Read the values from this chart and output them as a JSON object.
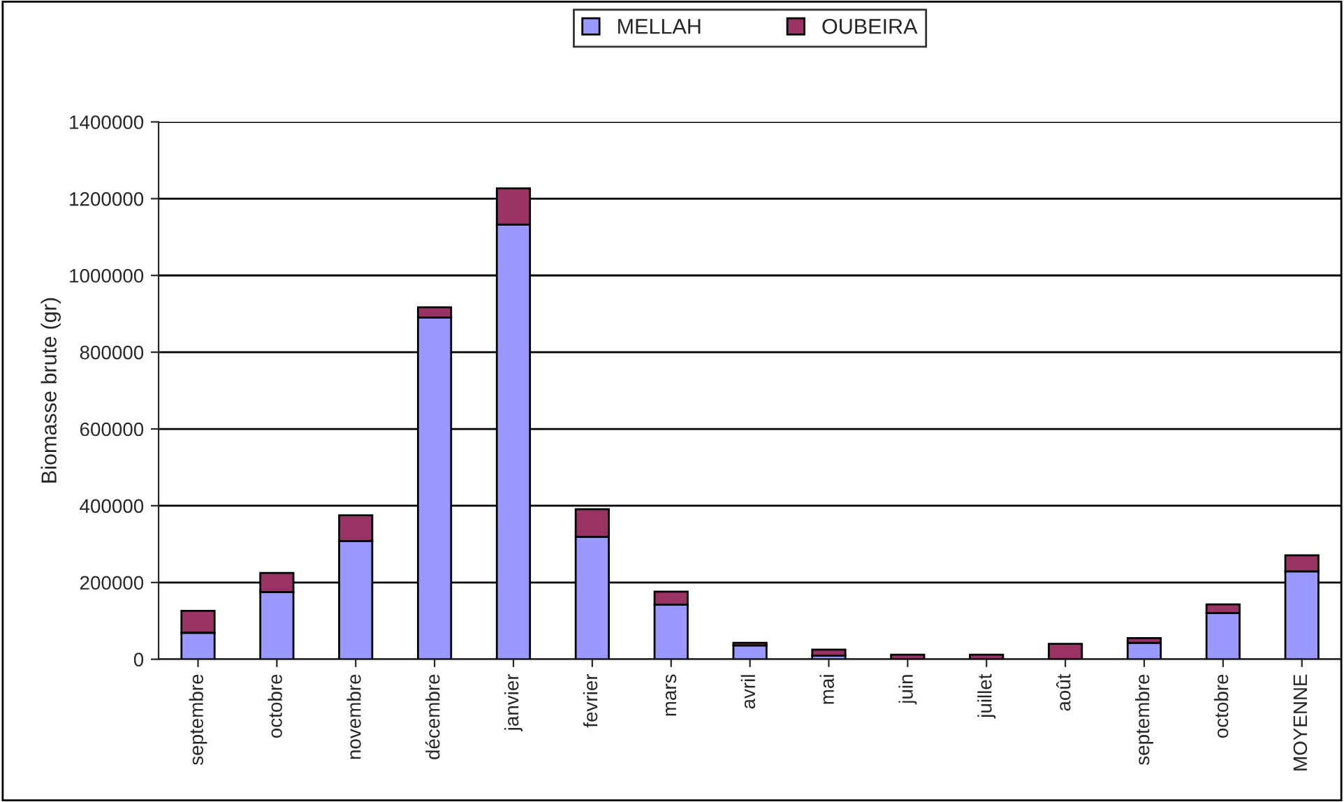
{
  "chart_data": {
    "type": "bar",
    "stacked": true,
    "ylabel": "Biomasse brute (gr)",
    "categories": [
      "septembre",
      "octobre",
      "novembre",
      "décembre",
      "janvier",
      "fevrier",
      "mars",
      "avril",
      "mai",
      "juin",
      "juillet",
      "août",
      "septembre",
      "octobre",
      "MOYENNE"
    ],
    "series": [
      {
        "name": "MELLAH",
        "color": "#9999ff",
        "values": [
          69000,
          175000,
          308000,
          890000,
          1132000,
          319000,
          142000,
          36000,
          9000,
          null,
          null,
          null,
          43000,
          120000,
          229000
        ]
      },
      {
        "name": "OUBEIRA",
        "color": "#993366",
        "values": [
          57000,
          50000,
          67000,
          27000,
          95000,
          72000,
          34000,
          7000,
          16000,
          12000,
          12000,
          40000,
          12000,
          23000,
          42000
        ]
      }
    ],
    "ylim": [
      0,
      1400000
    ],
    "yticks": [
      0,
      200000,
      400000,
      600000,
      800000,
      1000000,
      1200000,
      1400000
    ],
    "grid": "y",
    "legend": "top"
  }
}
